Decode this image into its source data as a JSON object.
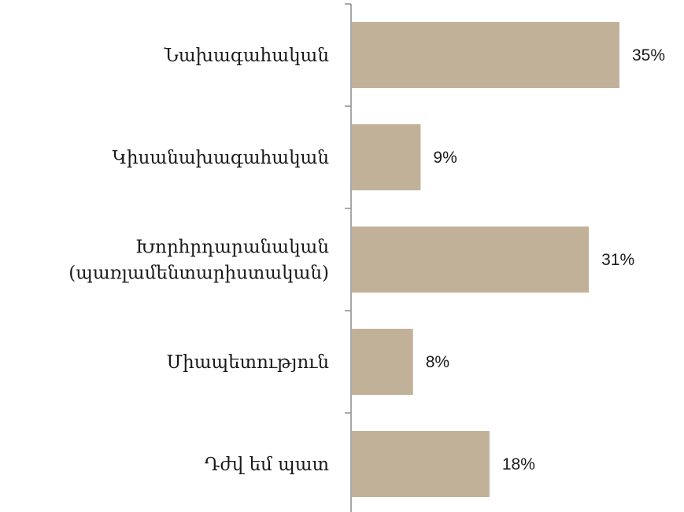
{
  "chart_data": {
    "type": "bar",
    "orientation": "horizontal",
    "categories": [
      [
        "Նախագահական"
      ],
      [
        "Կիսանախագահական"
      ],
      [
        "Խորհրդարանական",
        "(պառլամենտարիստական)"
      ],
      [
        "Միապետություն"
      ],
      [
        "Դժվ եմ պատ"
      ]
    ],
    "values": [
      35,
      9,
      31,
      8,
      18
    ],
    "value_labels": [
      "35%",
      "9%",
      "31%",
      "8%",
      "18%"
    ],
    "xlim": [
      0,
      40
    ],
    "grid": false,
    "legend": "none",
    "bar_color": "#c2b199",
    "axis_color": "#8c8c8c"
  }
}
